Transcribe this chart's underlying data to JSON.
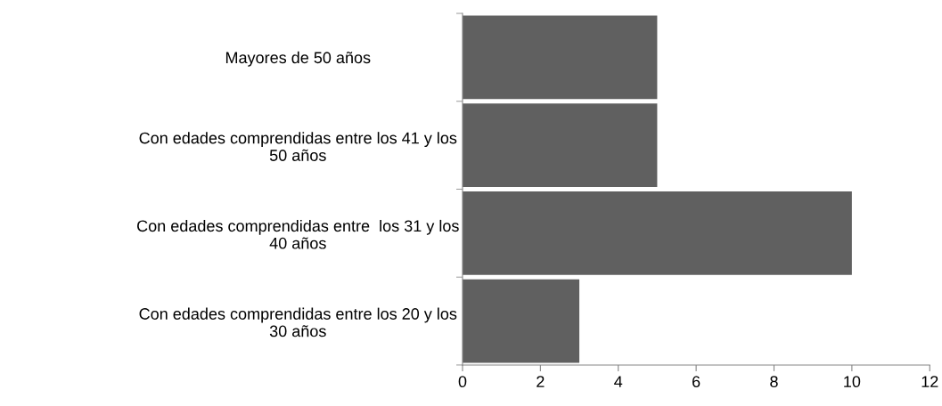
{
  "chart_data": {
    "type": "bar",
    "orientation": "horizontal",
    "categories": [
      "Mayores de 50 años",
      "Con edades comprendidas entre los 41 y los\n50 años",
      "Con edades comprendidas entre  los 31 y los\n40 años",
      "Con edades comprendidas entre los 20 y los\n30 años"
    ],
    "values": [
      5,
      5,
      10,
      3
    ],
    "color": "#606060",
    "xlim": [
      0,
      12
    ],
    "xticks": [
      0,
      2,
      4,
      6,
      8,
      10,
      12
    ],
    "grid": false,
    "legend": false
  }
}
